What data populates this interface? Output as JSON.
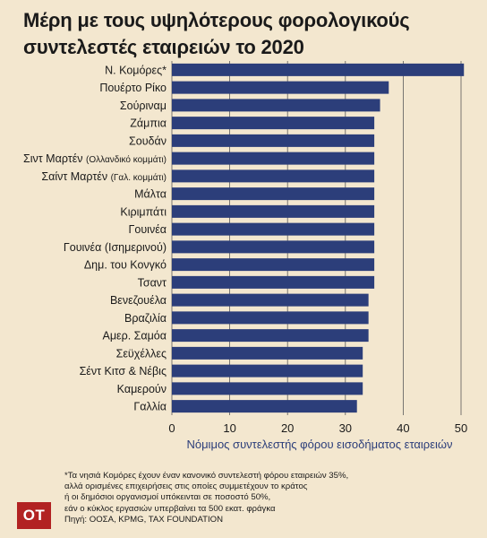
{
  "title": "Μέρη με τους υψηλότερους φορολογικούς συντελεστές εταιρειών το 2020",
  "colors": {
    "background": "#f3e7cf",
    "bar": "#2c3e7a",
    "axis_label": "#2c3e7a",
    "logo": "#b22222"
  },
  "chart_data": {
    "type": "bar",
    "orientation": "horizontal",
    "title": "Μέρη με τους υψηλότερους φορολογικούς συντελεστές εταιρειών το 2020",
    "xlabel": "Νόμιμος συντελεστής φόρου εισοδήματος εταιρειών",
    "ylabel": "",
    "xlim": [
      0,
      50
    ],
    "xticks": [
      0,
      10,
      20,
      30,
      40,
      50
    ],
    "grid": "vertical",
    "categories": [
      {
        "main": "Ν. Κομόρες*",
        "sub": ""
      },
      {
        "main": "Πουέρτο Ρίκο",
        "sub": ""
      },
      {
        "main": "Σούριναμ",
        "sub": ""
      },
      {
        "main": "Ζάμπια",
        "sub": ""
      },
      {
        "main": "Σουδάν",
        "sub": ""
      },
      {
        "main": "Σιντ Μαρτέν ",
        "sub": "(Ολλανδικό κομμάτι)"
      },
      {
        "main": "Σαίντ Μαρτέν ",
        "sub": "(Γαλ. κομμάτι)"
      },
      {
        "main": "Μάλτα",
        "sub": ""
      },
      {
        "main": "Κιριμπάτι",
        "sub": ""
      },
      {
        "main": "Γουινέα",
        "sub": ""
      },
      {
        "main": "Γουινέα (Ισημερινού)",
        "sub": ""
      },
      {
        "main": "Δημ. του Κονγκό",
        "sub": ""
      },
      {
        "main": "Τσαντ",
        "sub": ""
      },
      {
        "main": "Βενεζουέλα",
        "sub": ""
      },
      {
        "main": "Βραζιλία",
        "sub": ""
      },
      {
        "main": "Αμερ. Σαμόα",
        "sub": ""
      },
      {
        "main": "Σεϋχέλλες",
        "sub": ""
      },
      {
        "main": "Σέντ Κιτσ & Νέβις",
        "sub": ""
      },
      {
        "main": "Καμερούν",
        "sub": ""
      },
      {
        "main": "Γαλλία",
        "sub": ""
      }
    ],
    "values": [
      50.5,
      37.5,
      36,
      35,
      35,
      35,
      35,
      35,
      35,
      35,
      35,
      35,
      35,
      34,
      34,
      34,
      33,
      33,
      33,
      32
    ]
  },
  "footnote": [
    "*Τα νησιά Κομόρες έχουν έναν κανονικό συντελεστή φόρου εταιρειών 35%,",
    "αλλά ορισμένες επιχειρήσεις στις οποίες συμμετέχουν το κράτος",
    "ή οι δημόσιοι οργανισμοί υπόκεινται σε ποσοστό 50%,",
    "εάν ο κύκλος εργασιών υπερβαίνει τα 500 εκατ. φράγκα",
    "Πηγή: ΟΟΣΑ, KPMG, TAX FOUNDATION"
  ],
  "logo_text": "OT"
}
